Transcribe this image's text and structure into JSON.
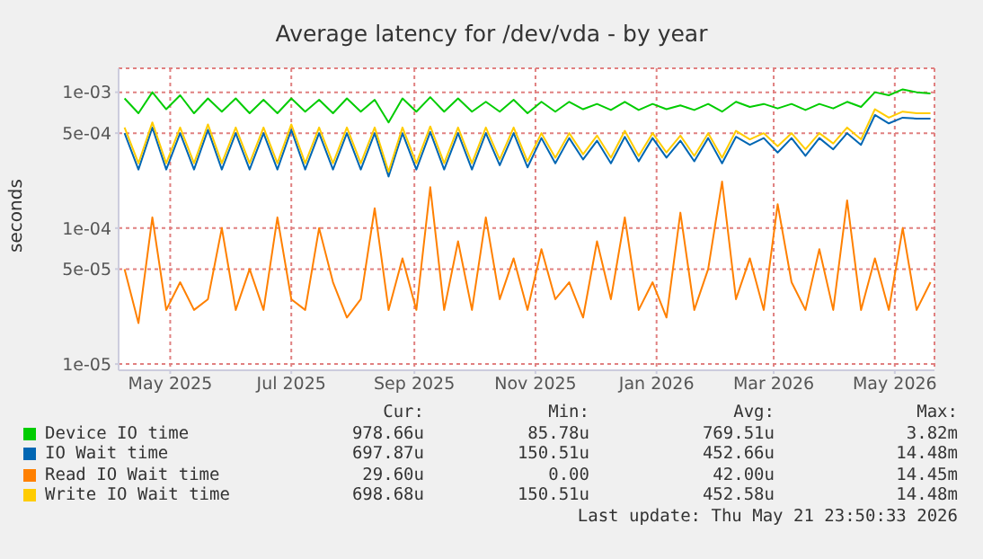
{
  "chart_data": {
    "type": "line",
    "title": "Average latency for /dev/vda - by year",
    "ylabel": "seconds",
    "x": [
      "2025-04-08",
      "2025-04-15",
      "2025-04-22",
      "2025-04-29",
      "2025-05-06",
      "2025-05-13",
      "2025-05-20",
      "2025-05-27",
      "2025-06-03",
      "2025-06-10",
      "2025-06-17",
      "2025-06-24",
      "2025-07-01",
      "2025-07-08",
      "2025-07-15",
      "2025-07-22",
      "2025-07-29",
      "2025-08-05",
      "2025-08-12",
      "2025-08-19",
      "2025-08-26",
      "2025-09-02",
      "2025-09-09",
      "2025-09-16",
      "2025-09-23",
      "2025-09-30",
      "2025-10-07",
      "2025-10-14",
      "2025-10-21",
      "2025-10-28",
      "2025-11-04",
      "2025-11-11",
      "2025-11-18",
      "2025-11-25",
      "2025-12-02",
      "2025-12-09",
      "2025-12-16",
      "2025-12-23",
      "2025-12-30",
      "2026-01-06",
      "2026-01-13",
      "2026-01-20",
      "2026-01-27",
      "2026-02-03",
      "2026-02-10",
      "2026-02-17",
      "2026-02-24",
      "2026-03-03",
      "2026-03-10",
      "2026-03-17",
      "2026-03-24",
      "2026-03-31",
      "2026-04-07",
      "2026-04-14",
      "2026-04-21",
      "2026-04-28",
      "2026-05-05",
      "2026-05-12",
      "2026-05-19"
    ],
    "series": [
      {
        "name": "Device IO time",
        "color": "#00cc00",
        "values": [
          0.0009,
          0.0007,
          0.001,
          0.00075,
          0.00095,
          0.0007,
          0.0009,
          0.00072,
          0.0009,
          0.0007,
          0.00088,
          0.0007,
          0.0009,
          0.00072,
          0.00088,
          0.0007,
          0.0009,
          0.00072,
          0.00088,
          0.0006,
          0.0009,
          0.00072,
          0.00092,
          0.00072,
          0.0009,
          0.00072,
          0.00085,
          0.00072,
          0.00088,
          0.0007,
          0.00085,
          0.00072,
          0.00085,
          0.00075,
          0.00082,
          0.00074,
          0.00085,
          0.00074,
          0.00082,
          0.00075,
          0.0008,
          0.00074,
          0.00082,
          0.00072,
          0.00085,
          0.00078,
          0.00082,
          0.00076,
          0.00082,
          0.00074,
          0.00082,
          0.00076,
          0.00085,
          0.00078,
          0.001,
          0.00095,
          0.00105,
          0.001,
          0.00098
        ]
      },
      {
        "name": "IO Wait time",
        "color": "#0066b3",
        "values": [
          0.0005,
          0.00027,
          0.00055,
          0.00027,
          0.0005,
          0.00027,
          0.00053,
          0.00027,
          0.0005,
          0.00027,
          0.0005,
          0.00027,
          0.00053,
          0.00027,
          0.0005,
          0.00027,
          0.0005,
          0.00027,
          0.0005,
          0.00024,
          0.0005,
          0.00027,
          0.00051,
          0.00027,
          0.0005,
          0.00027,
          0.0005,
          0.00029,
          0.0005,
          0.00028,
          0.00046,
          0.0003,
          0.00046,
          0.00032,
          0.00044,
          0.0003,
          0.00047,
          0.00031,
          0.00046,
          0.00033,
          0.00044,
          0.00031,
          0.00046,
          0.0003,
          0.00047,
          0.00041,
          0.00046,
          0.00036,
          0.00046,
          0.00034,
          0.00046,
          0.00038,
          0.0005,
          0.00041,
          0.00068,
          0.00059,
          0.00065,
          0.00064,
          0.00064
        ]
      },
      {
        "name": "Read IO Wait time",
        "color": "#ff8000",
        "values": [
          5e-05,
          2e-05,
          0.00012,
          2.5e-05,
          4e-05,
          2.5e-05,
          3e-05,
          0.0001,
          2.5e-05,
          5e-05,
          2.5e-05,
          0.00012,
          3e-05,
          2.5e-05,
          0.0001,
          4e-05,
          2.2e-05,
          3e-05,
          0.00014,
          2.5e-05,
          6e-05,
          2.5e-05,
          0.0002,
          2.5e-05,
          8e-05,
          2.5e-05,
          0.00012,
          3e-05,
          6e-05,
          2.5e-05,
          7e-05,
          3e-05,
          4e-05,
          2.2e-05,
          8e-05,
          3e-05,
          0.00012,
          2.5e-05,
          4e-05,
          2.2e-05,
          0.00013,
          2.5e-05,
          5e-05,
          0.00022,
          3e-05,
          6e-05,
          2.5e-05,
          0.00015,
          4e-05,
          2.5e-05,
          7e-05,
          2.5e-05,
          0.00016,
          2.5e-05,
          6e-05,
          2.5e-05,
          0.0001,
          2.5e-05,
          4e-05
        ]
      },
      {
        "name": "Write IO Wait time",
        "color": "#ffcc00",
        "values": [
          0.00055,
          0.0003,
          0.0006,
          0.0003,
          0.00055,
          0.0003,
          0.00058,
          0.0003,
          0.00055,
          0.0003,
          0.00055,
          0.0003,
          0.00058,
          0.0003,
          0.00055,
          0.0003,
          0.00055,
          0.0003,
          0.00055,
          0.00026,
          0.00055,
          0.0003,
          0.00056,
          0.0003,
          0.00055,
          0.0003,
          0.00055,
          0.00032,
          0.00055,
          0.00031,
          0.0005,
          0.00033,
          0.0005,
          0.00035,
          0.00048,
          0.00033,
          0.00052,
          0.00034,
          0.0005,
          0.00036,
          0.00048,
          0.00034,
          0.0005,
          0.00033,
          0.00052,
          0.00045,
          0.0005,
          0.0004,
          0.0005,
          0.00038,
          0.0005,
          0.00042,
          0.00055,
          0.00045,
          0.00075,
          0.00065,
          0.00072,
          0.0007,
          0.0007
        ]
      }
    ],
    "xlim": [
      "2025-04-05",
      "2026-05-21"
    ],
    "xticks": [
      {
        "value": "2025-05-01",
        "label": "May 2025"
      },
      {
        "value": "2025-07-01",
        "label": "Jul 2025"
      },
      {
        "value": "2025-09-01",
        "label": "Sep 2025"
      },
      {
        "value": "2025-11-01",
        "label": "Nov 2025"
      },
      {
        "value": "2026-01-01",
        "label": "Jan 2026"
      },
      {
        "value": "2026-03-01",
        "label": "Mar 2026"
      },
      {
        "value": "2026-05-01",
        "label": "May 2026"
      }
    ],
    "ylim": [
      9e-06,
      0.0015
    ],
    "yticks": [
      {
        "value": 1e-05,
        "label": "1e-05"
      },
      {
        "value": 5e-05,
        "label": "5e-05"
      },
      {
        "value": 0.0001,
        "label": "1e-04"
      },
      {
        "value": 0.0005,
        "label": "5e-04"
      },
      {
        "value": 0.001,
        "label": "1e-03"
      }
    ],
    "log": "y",
    "grid": true,
    "legend": "bottom",
    "marker": "none",
    "line_style": "solid",
    "annotations": [
      "Cur:",
      "Min:",
      "Avg:",
      "Max:",
      "978.66u",
      "85.78u",
      "769.51u",
      "3.82m",
      "697.87u",
      "150.51u",
      "452.66u",
      "14.48m",
      "29.60u",
      "0.00",
      "42.00u",
      "14.45m",
      "698.68u",
      "150.51u",
      "452.58u",
      "14.48m",
      "Last update: Thu May 21 23:50:33 2026"
    ]
  }
}
